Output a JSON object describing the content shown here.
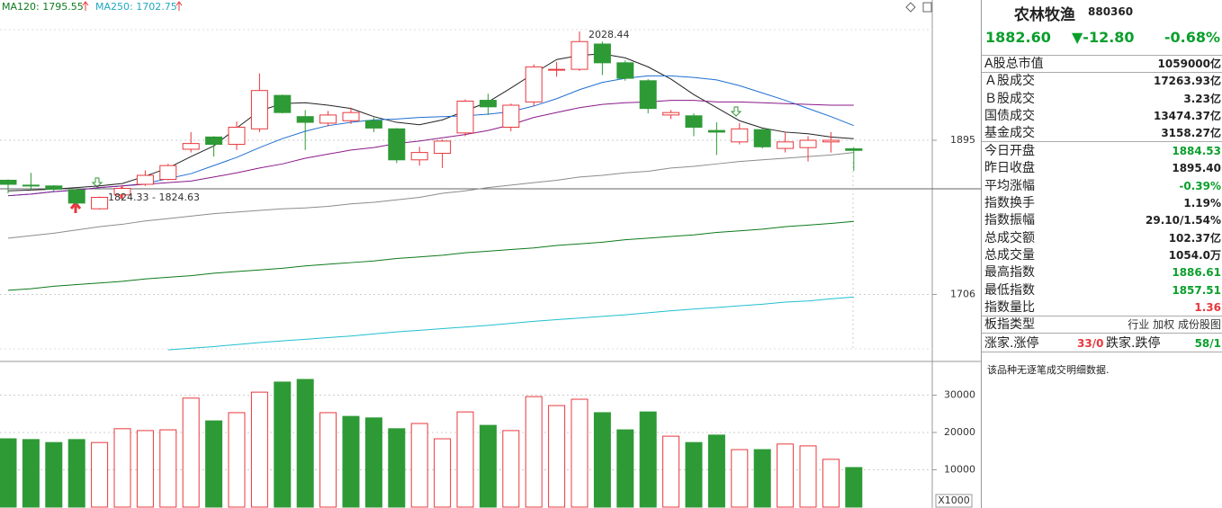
{
  "chart_data": [
    {
      "type": "candlestick",
      "open": [
        1846,
        1840,
        1839,
        1834,
        1811,
        1828,
        1841,
        1847,
        1884,
        1899,
        1890,
        1909,
        1950,
        1924,
        1916,
        1919,
        1919,
        1909,
        1871,
        1879,
        1904,
        1944,
        1911,
        1942,
        1981,
        1982,
        2013,
        1990,
        1968,
        1926,
        1925,
        1907,
        1893,
        1908,
        1885,
        1886,
        1893,
        1884.53
      ],
      "high": [
        1847,
        1855,
        1840,
        1836,
        1826,
        1840,
        1858,
        1866,
        1905,
        1900,
        1918,
        1977,
        1951,
        1932,
        1931,
        1935,
        1923,
        1910,
        1887,
        1896,
        1945,
        1952,
        1940,
        1988,
        1991,
        2028.44,
        2016,
        1993,
        1970,
        1932,
        1928,
        1917,
        1916,
        1909,
        1905,
        1900,
        1905,
        1886.61
      ],
      "low": [
        1830,
        1834,
        1832,
        1816,
        1810,
        1826,
        1839,
        1846,
        1880,
        1875,
        1883,
        1905,
        1928,
        1883,
        1912,
        1915,
        1905,
        1867,
        1864,
        1861,
        1900,
        1926,
        1906,
        1937,
        1973,
        1980,
        1975,
        1968,
        1928,
        1921,
        1900,
        1877,
        1890,
        1885,
        1880,
        1869,
        1880,
        1857.51
      ],
      "close": [
        1841,
        1839,
        1835,
        1818,
        1825,
        1836,
        1852,
        1864,
        1891,
        1890,
        1911,
        1956,
        1929,
        1917,
        1926,
        1929,
        1910,
        1871,
        1880,
        1894,
        1943,
        1936,
        1938,
        1985,
        1982,
        2016,
        1990,
        1971,
        1934,
        1929,
        1911,
        1905,
        1909,
        1887,
        1893,
        1895,
        1895,
        1882.6
      ],
      "up_color": "#e8383d",
      "down_color": "#2e9a36",
      "ylim": [
        1626,
        2067
      ],
      "yticks": [
        1895,
        1706
      ],
      "grid": true,
      "series": [
        {
          "color": "#222222",
          "values": [
            1833,
            1834,
            1835,
            1837,
            1839,
            1842,
            1851,
            1861,
            1875,
            1888,
            1910,
            1931,
            1940,
            1941,
            1938,
            1934,
            1924,
            1917,
            1914,
            1920,
            1931,
            1942,
            1959,
            1977,
            1994,
            1999,
            2001,
            1996,
            1985,
            1970,
            1951,
            1935,
            1919,
            1910,
            1905,
            1903,
            1899,
            1897
          ]
        },
        {
          "color": "#1f6fd1",
          "values": [
            1827,
            1829,
            1832,
            1834,
            1837,
            1839,
            1842,
            1848,
            1854,
            1864,
            1874,
            1886,
            1897,
            1906,
            1913,
            1917,
            1920,
            1921,
            1923,
            1924,
            1925,
            1927,
            1930,
            1937,
            1946,
            1957,
            1966,
            1971,
            1974,
            1974,
            1972,
            1969,
            1962,
            1953,
            1944,
            1934,
            1924,
            1913
          ]
        },
        {
          "color": "#8a1a8a",
          "values": [
            1827,
            1829,
            1832,
            1834,
            1837,
            1839,
            1841,
            1843,
            1845,
            1850,
            1855,
            1861,
            1866,
            1873,
            1878,
            1883,
            1886,
            1891,
            1894,
            1898,
            1902,
            1907,
            1914,
            1923,
            1929,
            1935,
            1939,
            1941,
            1942,
            1944,
            1944,
            1942,
            1942,
            1941,
            1940,
            1939,
            1938,
            1938
          ]
        },
        {
          "color": "#8c8c8c",
          "values": [
            1775,
            1778,
            1781,
            1785,
            1789,
            1792,
            1796,
            1799,
            1802,
            1805,
            1807,
            1809,
            1811,
            1812,
            1814,
            1817,
            1819,
            1822,
            1825,
            1830,
            1833,
            1837,
            1840,
            1843,
            1846,
            1850,
            1852,
            1855,
            1857,
            1861,
            1863,
            1866,
            1869,
            1871,
            1873,
            1875,
            1877,
            1880
          ]
        },
        {
          "legend": "MA120: 1795.55",
          "color": "#0d7a1c",
          "values": [
            1711,
            1713,
            1716,
            1718,
            1720,
            1722,
            1725,
            1727,
            1729,
            1732,
            1734,
            1736,
            1738,
            1741,
            1743,
            1745,
            1747,
            1750,
            1752,
            1754,
            1757,
            1759,
            1761,
            1763,
            1766,
            1768,
            1770,
            1773,
            1775,
            1777,
            1779,
            1782,
            1784,
            1786,
            1789,
            1791,
            1793,
            1795.55
          ]
        },
        {
          "legend": "MA250: 1702.75",
          "color": "#22bfd0",
          "values": [
            null,
            null,
            null,
            null,
            null,
            null,
            null,
            1638,
            1640,
            1642,
            1644.5,
            1647,
            1649,
            1651,
            1653,
            1655,
            1657.5,
            1660,
            1662,
            1664,
            1666,
            1668,
            1670.5,
            1673,
            1675,
            1677,
            1679,
            1681,
            1683.5,
            1686,
            1688,
            1690,
            1692,
            1694,
            1696.5,
            1698,
            1700.5,
            1702.75
          ]
        }
      ],
      "annotations": [
        "2028.44",
        "1824.33 - 1824.63"
      ]
    },
    {
      "type": "bar",
      "values": [
        18300,
        18100,
        17300,
        18100,
        17300,
        21000,
        20500,
        20700,
        29200,
        23100,
        25300,
        30800,
        33500,
        34200,
        25300,
        24300,
        23900,
        21000,
        22400,
        18300,
        25500,
        21900,
        20500,
        29600,
        27200,
        28900,
        25300,
        20700,
        25500,
        19000,
        17300,
        19300,
        15400,
        15400,
        16900,
        16400,
        12800,
        10600
      ],
      "colors": [
        "#2e9a36",
        "#2e9a36",
        "#2e9a36",
        "#2e9a36",
        "#e8383d",
        "#e8383d",
        "#e8383d",
        "#e8383d",
        "#e8383d",
        "#2e9a36",
        "#e8383d",
        "#e8383d",
        "#2e9a36",
        "#2e9a36",
        "#e8383d",
        "#2e9a36",
        "#2e9a36",
        "#2e9a36",
        "#e8383d",
        "#e8383d",
        "#e8383d",
        "#2e9a36",
        "#e8383d",
        "#e8383d",
        "#e8383d",
        "#e8383d",
        "#2e9a36",
        "#2e9a36",
        "#2e9a36",
        "#e8383d",
        "#2e9a36",
        "#2e9a36",
        "#e8383d",
        "#2e9a36",
        "#e8383d",
        "#e8383d",
        "#e8383d",
        "#2e9a36"
      ],
      "ylim": [
        0,
        38300
      ],
      "yticks": [
        10000,
        20000,
        30000
      ],
      "unit_label": "X1000"
    }
  ],
  "panel": {
    "name": "农林牧渔",
    "code": "880360",
    "price": "1882.60",
    "change": "▼-12.80",
    "change_pct": "-0.68%",
    "rows": [
      {
        "label": "A股总市值",
        "value": "1059000亿"
      },
      {
        "label": "Ａ股成交",
        "value": "17263.93亿"
      },
      {
        "label": "Ｂ股成交",
        "value": "3.23亿"
      },
      {
        "label": "国债成交",
        "value": "13474.37亿"
      },
      {
        "label": "基金成交",
        "value": "3158.27亿"
      },
      {
        "label": "今日开盘",
        "value": "1884.53",
        "color": "#0a9f2c"
      },
      {
        "label": "昨日收盘",
        "value": "1895.40"
      },
      {
        "label": "平均涨幅",
        "value": "-0.39%",
        "color": "#0a9f2c"
      },
      {
        "label": "指数换手",
        "value": "1.19%"
      },
      {
        "label": "指数振幅",
        "value": "29.10/1.54%"
      },
      {
        "label": "总成交额",
        "value": "102.37亿"
      },
      {
        "label": "总成交量",
        "value": "1054.0万"
      },
      {
        "label": "最高指数",
        "value": "1886.61",
        "color": "#0a9f2c"
      },
      {
        "label": "最低指数",
        "value": "1857.51",
        "color": "#0a9f2c"
      },
      {
        "label": "指数量比",
        "value": "1.36",
        "color": "#e8383d"
      }
    ],
    "sector": {
      "label": "板指类型",
      "options": [
        "行业",
        "加权",
        "成份股图"
      ]
    },
    "breadth": [
      "涨家.涨停",
      "33/0",
      "跌家.跌停",
      "58/1"
    ],
    "note": "该品种无逐笔成交明细数据."
  }
}
